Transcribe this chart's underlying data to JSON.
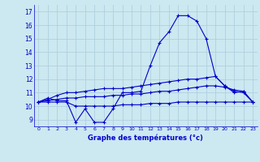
{
  "xlabel": "Graphe des températures (°c)",
  "background_color": "#cce8f0",
  "line_color": "#0000cc",
  "grid_color": "#aaccdd",
  "xlim": [
    -0.5,
    23.5
  ],
  "ylim": [
    8.5,
    17.5
  ],
  "yticks": [
    9,
    10,
    11,
    12,
    13,
    14,
    15,
    16,
    17
  ],
  "xticks": [
    0,
    1,
    2,
    3,
    4,
    5,
    6,
    7,
    8,
    9,
    10,
    11,
    12,
    13,
    14,
    15,
    16,
    17,
    18,
    19,
    20,
    21,
    22,
    23
  ],
  "series": {
    "actual": [
      10.3,
      10.6,
      10.4,
      10.4,
      8.8,
      9.8,
      8.8,
      8.8,
      9.8,
      11.0,
      11.0,
      11.1,
      13.0,
      14.7,
      15.5,
      16.7,
      16.7,
      16.3,
      15.0,
      12.2,
      11.5,
      11.0,
      11.1,
      10.3
    ],
    "min": [
      10.3,
      10.3,
      10.3,
      10.3,
      10.0,
      10.0,
      10.0,
      10.0,
      10.0,
      10.1,
      10.1,
      10.1,
      10.2,
      10.2,
      10.2,
      10.3,
      10.3,
      10.3,
      10.3,
      10.3,
      10.3,
      10.3,
      10.3,
      10.3
    ],
    "max": [
      10.3,
      10.5,
      10.8,
      11.0,
      11.0,
      11.1,
      11.2,
      11.3,
      11.3,
      11.3,
      11.4,
      11.5,
      11.6,
      11.7,
      11.8,
      11.9,
      12.0,
      12.0,
      12.1,
      12.2,
      11.5,
      11.1,
      11.0,
      10.3
    ],
    "avg": [
      10.3,
      10.4,
      10.5,
      10.6,
      10.6,
      10.7,
      10.7,
      10.7,
      10.8,
      10.8,
      10.9,
      10.9,
      11.0,
      11.1,
      11.1,
      11.2,
      11.3,
      11.4,
      11.5,
      11.5,
      11.4,
      11.2,
      11.1,
      10.3
    ]
  }
}
